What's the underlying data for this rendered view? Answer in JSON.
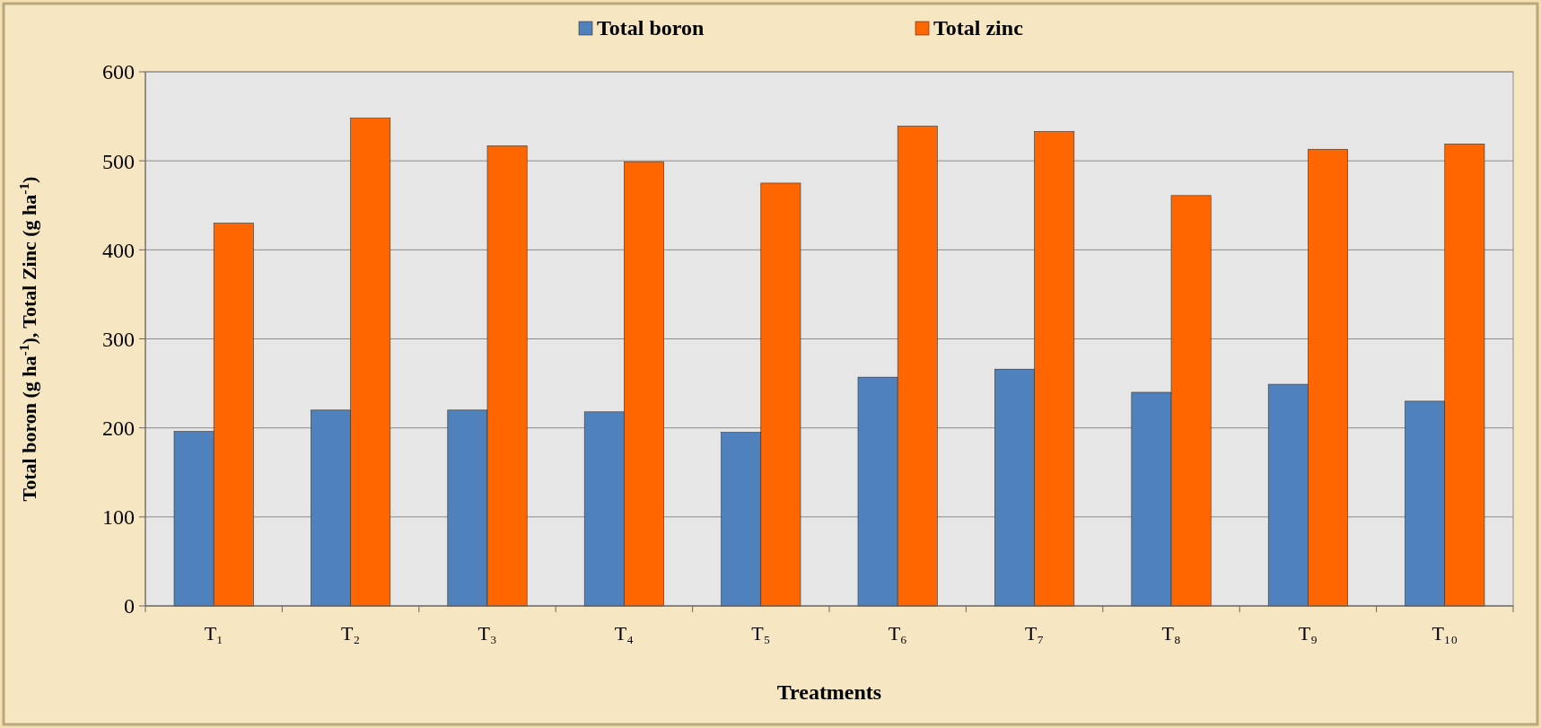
{
  "chart_data": {
    "type": "bar",
    "xlabel": "Treatments",
    "ylabel": "Total boron (g ha$^{-1}$), Total Zinc (g ha$^{-1}$)",
    "categories": [
      "T₁",
      "T₂",
      "T₃",
      "T₄",
      "T₅",
      "T₆",
      "T₇",
      "T₈",
      "T₉",
      "T₁₀"
    ],
    "series": [
      {
        "name": "Total boron",
        "color": "#4f81bd",
        "values": [
          196,
          220,
          220,
          218,
          195,
          257,
          266,
          240,
          249,
          230
        ]
      },
      {
        "name": "Total zinc",
        "color": "#ff6600",
        "values": [
          430,
          548,
          517,
          499,
          475,
          539,
          533,
          461,
          513,
          519
        ]
      }
    ],
    "ylim": [
      0,
      600
    ],
    "yticks": [
      0,
      100,
      200,
      300,
      400,
      500,
      600
    ],
    "grid": "y",
    "legend": "top"
  }
}
